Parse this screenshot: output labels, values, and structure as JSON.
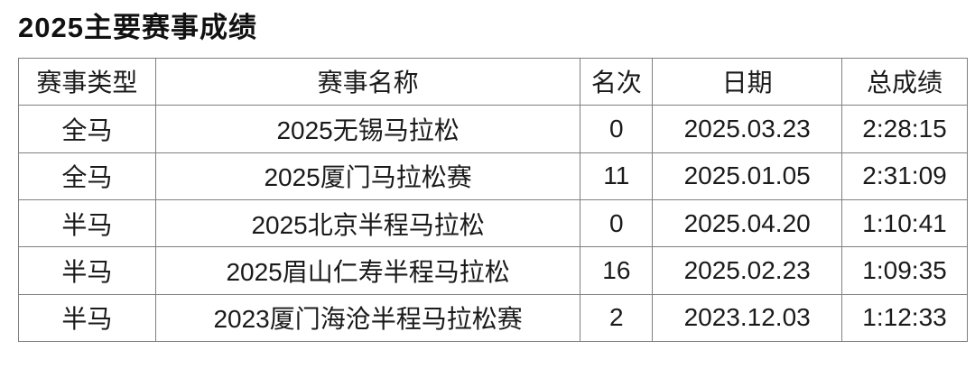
{
  "page": {
    "title": "2025主要赛事成绩"
  },
  "table": {
    "columns": [
      {
        "key": "type",
        "label": "赛事类型"
      },
      {
        "key": "name",
        "label": "赛事名称"
      },
      {
        "key": "rank",
        "label": "名次"
      },
      {
        "key": "date",
        "label": "日期"
      },
      {
        "key": "result",
        "label": "总成绩"
      }
    ],
    "rows": [
      {
        "type": "全马",
        "name": "2025无锡马拉松",
        "rank": "0",
        "date": "2025.03.23",
        "result": "2:28:15"
      },
      {
        "type": "全马",
        "name": "2025厦门马拉松赛",
        "rank": "11",
        "date": "2025.01.05",
        "result": "2:31:09"
      },
      {
        "type": "半马",
        "name": "2025北京半程马拉松",
        "rank": "0",
        "date": "2025.04.20",
        "result": "1:10:41"
      },
      {
        "type": "半马",
        "name": "2025眉山仁寿半程马拉松",
        "rank": "16",
        "date": "2025.02.23",
        "result": "1:09:35"
      },
      {
        "type": "半马",
        "name": "2023厦门海沧半程马拉松赛",
        "rank": "2",
        "date": "2023.12.03",
        "result": "1:12:33"
      }
    ]
  },
  "colors": {
    "border": "#808080",
    "text": "#1a1a1a",
    "background": "#ffffff"
  }
}
